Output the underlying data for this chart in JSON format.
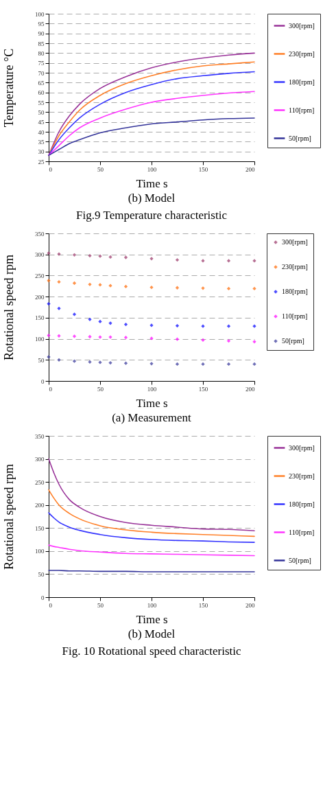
{
  "chart_data": [
    {
      "type": "line",
      "title": "(b) Model",
      "annotations": [
        "Fig.9 Temperature characteristic"
      ],
      "xlabel": "Time s",
      "ylabel": "Temperature °C",
      "x": [
        0,
        10,
        20,
        30,
        50,
        75,
        100,
        125,
        150,
        175,
        200
      ],
      "xlim": [
        0,
        200
      ],
      "xticks": [
        0,
        50,
        100,
        150,
        200
      ],
      "ylim": [
        25,
        100
      ],
      "yticks": [
        25,
        30,
        35,
        40,
        45,
        50,
        55,
        60,
        65,
        70,
        75,
        80,
        85,
        90,
        95,
        100
      ],
      "grid": "y",
      "legend": "right",
      "line_style": "solid",
      "marker": "none",
      "series": [
        {
          "name": "300[rpm]",
          "color": "#993399",
          "values": [
            28,
            40,
            48,
            54,
            62,
            68,
            72.5,
            75.5,
            77.5,
            79,
            80
          ]
        },
        {
          "name": "230[rpm]",
          "color": "#ff7f27",
          "values": [
            28,
            38,
            45,
            51,
            58.5,
            64.5,
            68.5,
            71.5,
            73.5,
            74.5,
            75.5
          ]
        },
        {
          "name": "180[rpm]",
          "color": "#3333ff",
          "values": [
            28,
            36,
            42,
            47,
            54,
            60,
            64,
            67,
            68.5,
            69.7,
            70.5
          ]
        },
        {
          "name": "110[rpm]",
          "color": "#ff33ff",
          "values": [
            28,
            33,
            38,
            42,
            47,
            51.5,
            55,
            57,
            58.5,
            59.7,
            60.5
          ]
        },
        {
          "name": "50[rpm]",
          "color": "#333399",
          "values": [
            28,
            31,
            34,
            36,
            39.5,
            42,
            44,
            45,
            46,
            46.7,
            47
          ]
        }
      ]
    },
    {
      "type": "scatter",
      "title": "(a) Measurement",
      "xlabel": "Time s",
      "ylabel": "Rotational speed rpm",
      "x": [
        0,
        10,
        25,
        40,
        50,
        60,
        75,
        100,
        125,
        150,
        175,
        200
      ],
      "xlim": [
        0,
        200
      ],
      "xticks": [
        0,
        50,
        100,
        150,
        200
      ],
      "ylim": [
        0,
        350
      ],
      "yticks": [
        0,
        50,
        100,
        150,
        200,
        250,
        300,
        350
      ],
      "grid": "y",
      "legend": "right",
      "marker": "diamond",
      "series": [
        {
          "name": "300[rpm]",
          "color": "#993366",
          "values": [
            303,
            301,
            299,
            297,
            296,
            294,
            293,
            290,
            287,
            285,
            285,
            285
          ]
        },
        {
          "name": "230[rpm]",
          "color": "#ff6600",
          "values": [
            238,
            235,
            232,
            229,
            228,
            226,
            224,
            222,
            221,
            220,
            219,
            219
          ]
        },
        {
          "name": "180[rpm]",
          "color": "#0000ff",
          "values": [
            183,
            172,
            158,
            146,
            141,
            137,
            134,
            132,
            131,
            130,
            130,
            130
          ]
        },
        {
          "name": "110[rpm]",
          "color": "#ff00ff",
          "values": [
            108,
            107,
            106,
            105,
            104,
            104,
            103,
            101,
            99,
            97,
            95,
            93
          ]
        },
        {
          "name": "50[rpm]",
          "color": "#333399",
          "values": [
            57,
            50,
            47,
            45,
            44,
            43,
            42,
            41,
            40,
            40,
            40,
            40
          ]
        }
      ]
    },
    {
      "type": "line",
      "title": "(b) Model",
      "annotations": [
        "Fig. 10 Rotational speed characteristic"
      ],
      "xlabel": "Time s",
      "ylabel": "Rotational speed rpm",
      "x": [
        0,
        5,
        10,
        20,
        30,
        50,
        75,
        100,
        125,
        150,
        175,
        200
      ],
      "xlim": [
        0,
        200
      ],
      "xticks": [
        0,
        50,
        100,
        150,
        200
      ],
      "ylim": [
        0,
        350
      ],
      "yticks": [
        0,
        50,
        100,
        150,
        200,
        250,
        300,
        350
      ],
      "grid": "y",
      "legend": "right",
      "line_style": "solid",
      "marker": "none",
      "series": [
        {
          "name": "300[rpm]",
          "color": "#993399",
          "values": [
            300,
            270,
            245,
            212,
            195,
            175,
            162,
            156,
            152,
            148,
            147,
            144
          ]
        },
        {
          "name": "230[rpm]",
          "color": "#ff7f27",
          "values": [
            233,
            215,
            200,
            182,
            170,
            155,
            146,
            141,
            138,
            136,
            134,
            132
          ]
        },
        {
          "name": "180[rpm]",
          "color": "#3333ff",
          "values": [
            183,
            172,
            163,
            152,
            145,
            136,
            129,
            125,
            123,
            122,
            120,
            119
          ]
        },
        {
          "name": "110[rpm]",
          "color": "#ff33ff",
          "values": [
            113,
            110,
            108,
            104,
            101,
            98,
            95,
            94,
            93,
            92,
            91,
            90
          ]
        },
        {
          "name": "50[rpm]",
          "color": "#333399",
          "values": [
            58,
            58,
            58,
            57,
            57,
            56,
            56,
            55,
            55,
            55,
            55,
            55
          ]
        }
      ]
    }
  ]
}
